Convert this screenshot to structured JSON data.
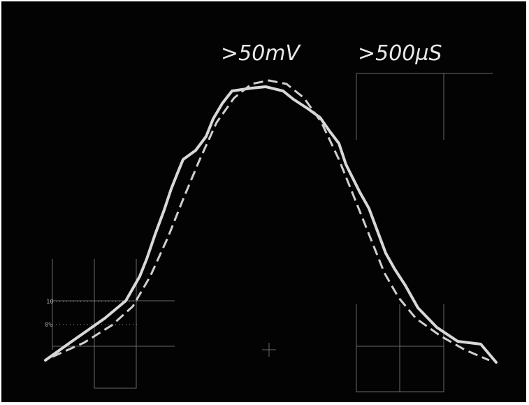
{
  "screen": {
    "volts_per_div": ">50mV",
    "time_per_div": ">500µS"
  },
  "graticule": {
    "upper_mark": "10",
    "lower_mark": "0%"
  }
}
